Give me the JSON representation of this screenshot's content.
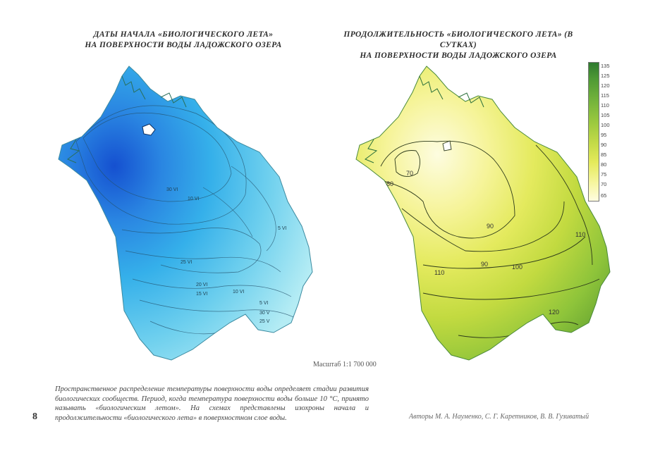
{
  "left_map": {
    "title_line1": "ДАТЫ НАЧАЛА «БИОЛОГИЧЕСКОГО ЛЕТА»",
    "title_line2": "НА ПОВЕРХНОСТИ ВОДЫ ЛАДОЖСКОГО ОЗЕРА",
    "isoline_labels": [
      "30 VI",
      "10 VI",
      "5 VI",
      "25 VI",
      "20 VI",
      "15 VI",
      "10 VI",
      "5 VI",
      "30 V",
      "25 V"
    ],
    "scale": "Масштаб 1:1 700 000",
    "colors": {
      "deep": "#1550d0",
      "mid": "#2aa0e6",
      "light": "#8fdcef"
    }
  },
  "right_map": {
    "title_line1": "ПРОДОЛЖИТЕЛЬНОСТЬ «БИОЛОГИЧЕСКОГО ЛЕТА» (В СУТКАХ)",
    "title_line2": "НА ПОВЕРХНОСТИ ВОДЫ ЛАДОЖСКОГО ОЗЕРА",
    "isoline_labels": [
      "70",
      "80",
      "90",
      "90",
      "100",
      "110",
      "110",
      "120"
    ],
    "legend_ticks": [
      "135",
      "125",
      "120",
      "115",
      "110",
      "105",
      "100",
      "95",
      "90",
      "85",
      "80",
      "75",
      "70",
      "65"
    ],
    "colors": {
      "low": "#fbfac4",
      "mid": "#d6e85a",
      "high": "#6aa832"
    }
  },
  "caption": "Пространственное распределение температуры поверхности воды определяет стадии развития биологических сообществ. Период, когда температура поверхности воды больше 10 °С, принято называть «биологическим летом». На схемах представлены изохроны начала и продолжительности «биологического лета» в поверхностном слое воды.",
  "page_number": "8",
  "authors": "Авторы М. А. Науменко, С. Г. Каретников, В. В. Гузиватый"
}
